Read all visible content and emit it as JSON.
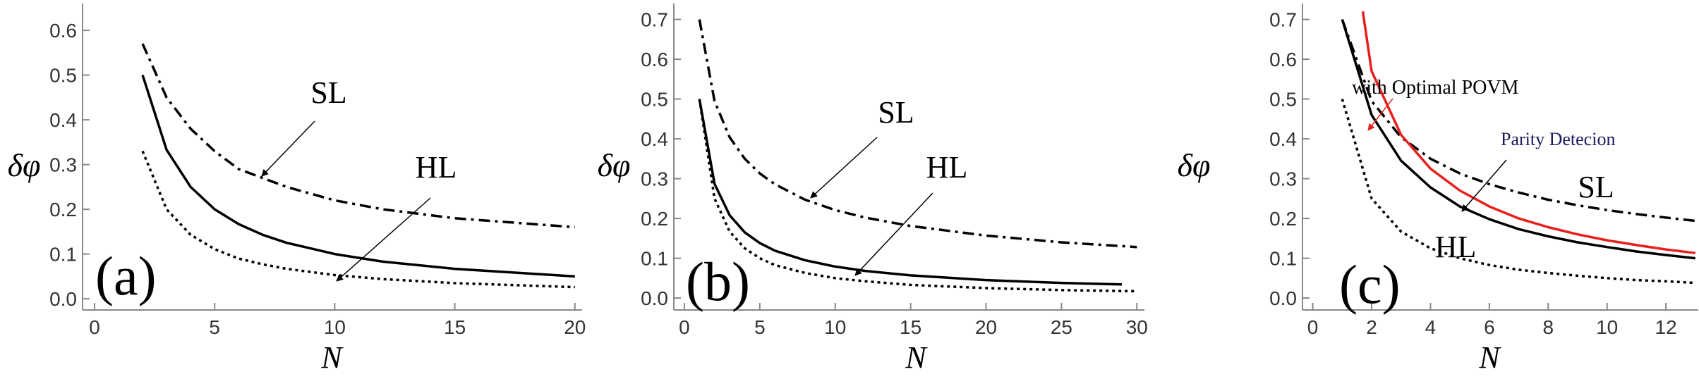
{
  "chart_data": [
    {
      "type": "line",
      "label": "(a)",
      "xlabel": "N",
      "ylabel": "δφ",
      "xlim": [
        -0.5,
        20.3
      ],
      "ylim": [
        -0.025,
        0.66
      ],
      "xticks": [
        0,
        5,
        10,
        15,
        20
      ],
      "yticks": [
        {
          "value": 0,
          "label": "0.0"
        },
        0.1,
        0.2,
        0.3,
        0.4,
        0.5,
        0.6
      ],
      "annotations": [
        "SL",
        "HL"
      ],
      "series": [
        {
          "color": "#000000",
          "dash": "dashdot",
          "x": [
            2,
            3,
            4,
            5,
            6,
            7,
            8,
            10,
            12,
            15,
            20
          ],
          "values": [
            0.57,
            0.45,
            0.38,
            0.33,
            0.29,
            0.27,
            0.25,
            0.22,
            0.2,
            0.18,
            0.16
          ]
        },
        {
          "color": "#000000",
          "dash": "solid",
          "x": [
            2,
            3,
            4,
            5,
            6,
            7,
            8,
            10,
            12,
            15,
            20
          ],
          "values": [
            0.5,
            0.333,
            0.25,
            0.2,
            0.167,
            0.143,
            0.125,
            0.1,
            0.083,
            0.067,
            0.05
          ]
        },
        {
          "color": "#000000",
          "dash": "dotted",
          "x": [
            2,
            3,
            4,
            5,
            6,
            7,
            8,
            10,
            12,
            15,
            20
          ],
          "values": [
            0.33,
            0.2,
            0.143,
            0.111,
            0.09,
            0.077,
            0.067,
            0.053,
            0.044,
            0.035,
            0.026
          ]
        }
      ]
    },
    {
      "type": "line",
      "label": "(b)",
      "xlabel": "N",
      "ylabel": "δφ",
      "xlim": [
        -0.7,
        30.5
      ],
      "ylim": [
        -0.03,
        0.74
      ],
      "xticks": [
        0,
        5,
        10,
        15,
        20,
        25,
        30
      ],
      "yticks": [
        {
          "value": 0,
          "label": "0.0"
        },
        0.1,
        0.2,
        0.3,
        0.4,
        0.5,
        0.6,
        0.7
      ],
      "annotations": [
        "SL",
        "HL"
      ],
      "series": [
        {
          "color": "#000000",
          "dash": "dashdot",
          "x": [
            1,
            2,
            3,
            4,
            5,
            6,
            8,
            10,
            12,
            15,
            20,
            25,
            30
          ],
          "values": [
            0.7,
            0.495,
            0.404,
            0.35,
            0.313,
            0.286,
            0.247,
            0.221,
            0.202,
            0.181,
            0.157,
            0.14,
            0.128
          ]
        },
        {
          "color": "#000000",
          "dash": "solid",
          "x": [
            1,
            2,
            3,
            4,
            5,
            6,
            8,
            10,
            12,
            15,
            20,
            25,
            29
          ],
          "values": [
            0.5,
            0.287,
            0.208,
            0.165,
            0.138,
            0.119,
            0.095,
            0.079,
            0.068,
            0.057,
            0.045,
            0.038,
            0.034
          ]
        },
        {
          "color": "#000000",
          "dash": "dotted",
          "x": [
            1,
            2,
            3,
            4,
            5,
            6,
            8,
            10,
            12,
            15,
            20,
            25,
            30
          ],
          "values": [
            0.5,
            0.25,
            0.167,
            0.125,
            0.1,
            0.083,
            0.063,
            0.05,
            0.042,
            0.033,
            0.025,
            0.02,
            0.017
          ]
        }
      ]
    },
    {
      "type": "line",
      "label": "(c)",
      "xlabel": "N",
      "ylabel": "δφ",
      "xlim": [
        -0.35,
        13.1
      ],
      "ylim": [
        -0.03,
        0.74
      ],
      "xticks": [
        0,
        2,
        4,
        6,
        8,
        10,
        12
      ],
      "yticks": [
        {
          "value": 0,
          "label": "0.0"
        },
        0.1,
        0.2,
        0.3,
        0.4,
        0.5,
        0.6,
        0.7
      ],
      "annotations": [
        "with Optimal POVM",
        "Parity Detecion",
        "SL",
        "HL"
      ],
      "series": [
        {
          "color": "#000000",
          "dash": "dashdot",
          "x": [
            1,
            2,
            3,
            4,
            5,
            6,
            7,
            8,
            9,
            10,
            11,
            12,
            13
          ],
          "values": [
            0.7,
            0.495,
            0.404,
            0.35,
            0.313,
            0.286,
            0.265,
            0.247,
            0.233,
            0.221,
            0.211,
            0.202,
            0.194
          ]
        },
        {
          "color": "#000000",
          "dash": "solid",
          "x": [
            1,
            2,
            3,
            4,
            5,
            6,
            7,
            8,
            9,
            10,
            11,
            12,
            13
          ],
          "values": [
            0.7,
            0.46,
            0.345,
            0.278,
            0.23,
            0.198,
            0.173,
            0.155,
            0.14,
            0.128,
            0.117,
            0.108,
            0.1
          ]
        },
        {
          "color": "#e8201c",
          "dash": "solid",
          "x": [
            1.7,
            2,
            3,
            4,
            5,
            6,
            7,
            8,
            9,
            10,
            11,
            12,
            13
          ],
          "values": [
            0.72,
            0.57,
            0.41,
            0.325,
            0.27,
            0.23,
            0.2,
            0.178,
            0.16,
            0.145,
            0.133,
            0.122,
            0.113
          ]
        },
        {
          "color": "#000000",
          "dash": "dotted",
          "x": [
            1,
            2,
            3,
            4,
            5,
            6,
            7,
            8,
            9,
            10,
            11,
            12,
            13
          ],
          "values": [
            0.5,
            0.25,
            0.167,
            0.125,
            0.1,
            0.083,
            0.071,
            0.063,
            0.056,
            0.05,
            0.045,
            0.042,
            0.038
          ]
        }
      ]
    }
  ]
}
